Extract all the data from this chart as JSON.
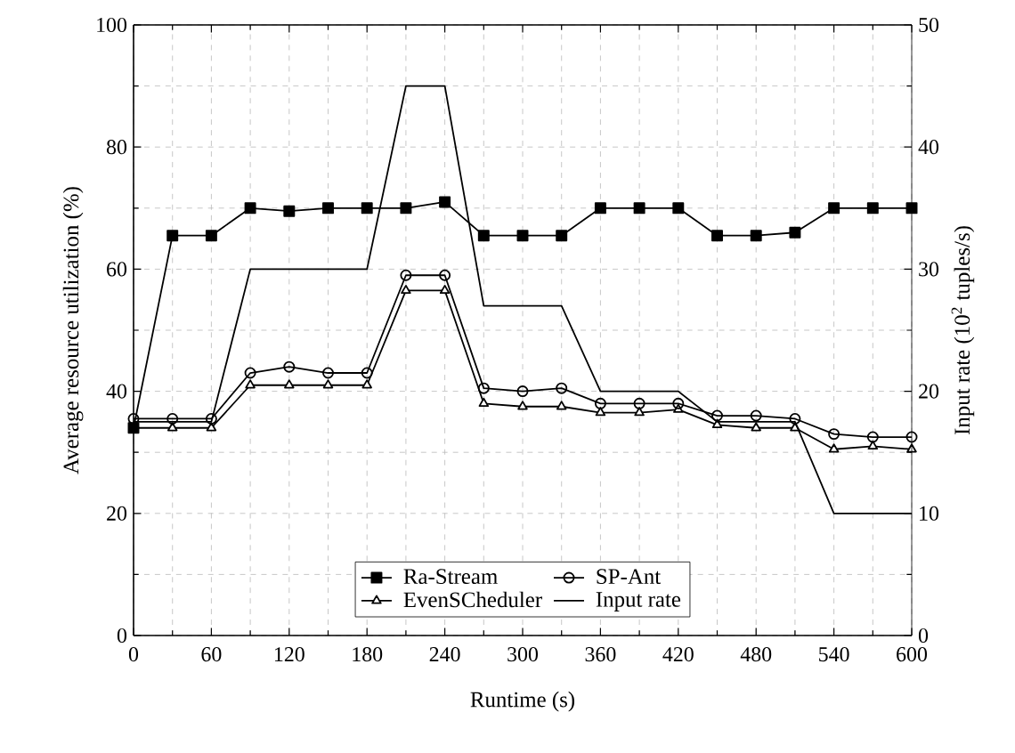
{
  "chart_data": {
    "type": "line",
    "xlabel": "Runtime (s)",
    "ylabel": "Average resource utilization (%)",
    "y2label": "Input rate (10$^{2}$ tuples/s)",
    "x": [
      0,
      30,
      60,
      90,
      120,
      150,
      180,
      210,
      240,
      270,
      300,
      330,
      360,
      390,
      420,
      450,
      480,
      510,
      540,
      570,
      600
    ],
    "xlim": [
      0,
      600
    ],
    "xticks": [
      0,
      60,
      120,
      180,
      240,
      300,
      360,
      420,
      480,
      540,
      600
    ],
    "ylim": [
      0,
      100
    ],
    "yticks": [
      0,
      20,
      40,
      60,
      80,
      100
    ],
    "y2lim": [
      0,
      50
    ],
    "y2ticks": [
      0,
      10,
      20,
      30,
      40,
      50
    ],
    "grid": true,
    "legend": "bottom",
    "series": [
      {
        "name": "Ra-Stream",
        "color": "#000000",
        "marker": "square",
        "values": [
          34,
          65.5,
          65.5,
          70,
          69.5,
          70,
          70,
          70,
          71,
          65.5,
          65.5,
          65.5,
          70,
          70,
          70,
          65.5,
          65.5,
          66,
          70,
          70,
          70
        ]
      },
      {
        "name": "SP-Ant",
        "color": "#000000",
        "marker": "circle",
        "values": [
          35.5,
          35.5,
          35.5,
          43,
          44,
          43,
          43,
          59,
          59,
          40.5,
          40,
          40.5,
          38,
          38,
          38,
          36,
          36,
          35.5,
          33,
          32.5,
          32.5
        ]
      },
      {
        "name": "EvenSCheduler",
        "color": "#000000",
        "marker": "triangle",
        "values": [
          34,
          34,
          34,
          41,
          41,
          41,
          41,
          56.5,
          56.5,
          38,
          37.5,
          37.5,
          36.5,
          36.5,
          37,
          34.5,
          34,
          34,
          30.5,
          31,
          30.5
        ]
      },
      {
        "name": "Input rate",
        "color": "#000000",
        "marker": "none",
        "axis": "y2",
        "values": [
          17.5,
          17.5,
          17.5,
          30,
          30,
          30,
          30,
          45,
          45,
          27,
          27,
          27,
          20,
          20,
          20,
          17.5,
          17.5,
          17.5,
          10,
          10,
          10
        ]
      }
    ]
  }
}
